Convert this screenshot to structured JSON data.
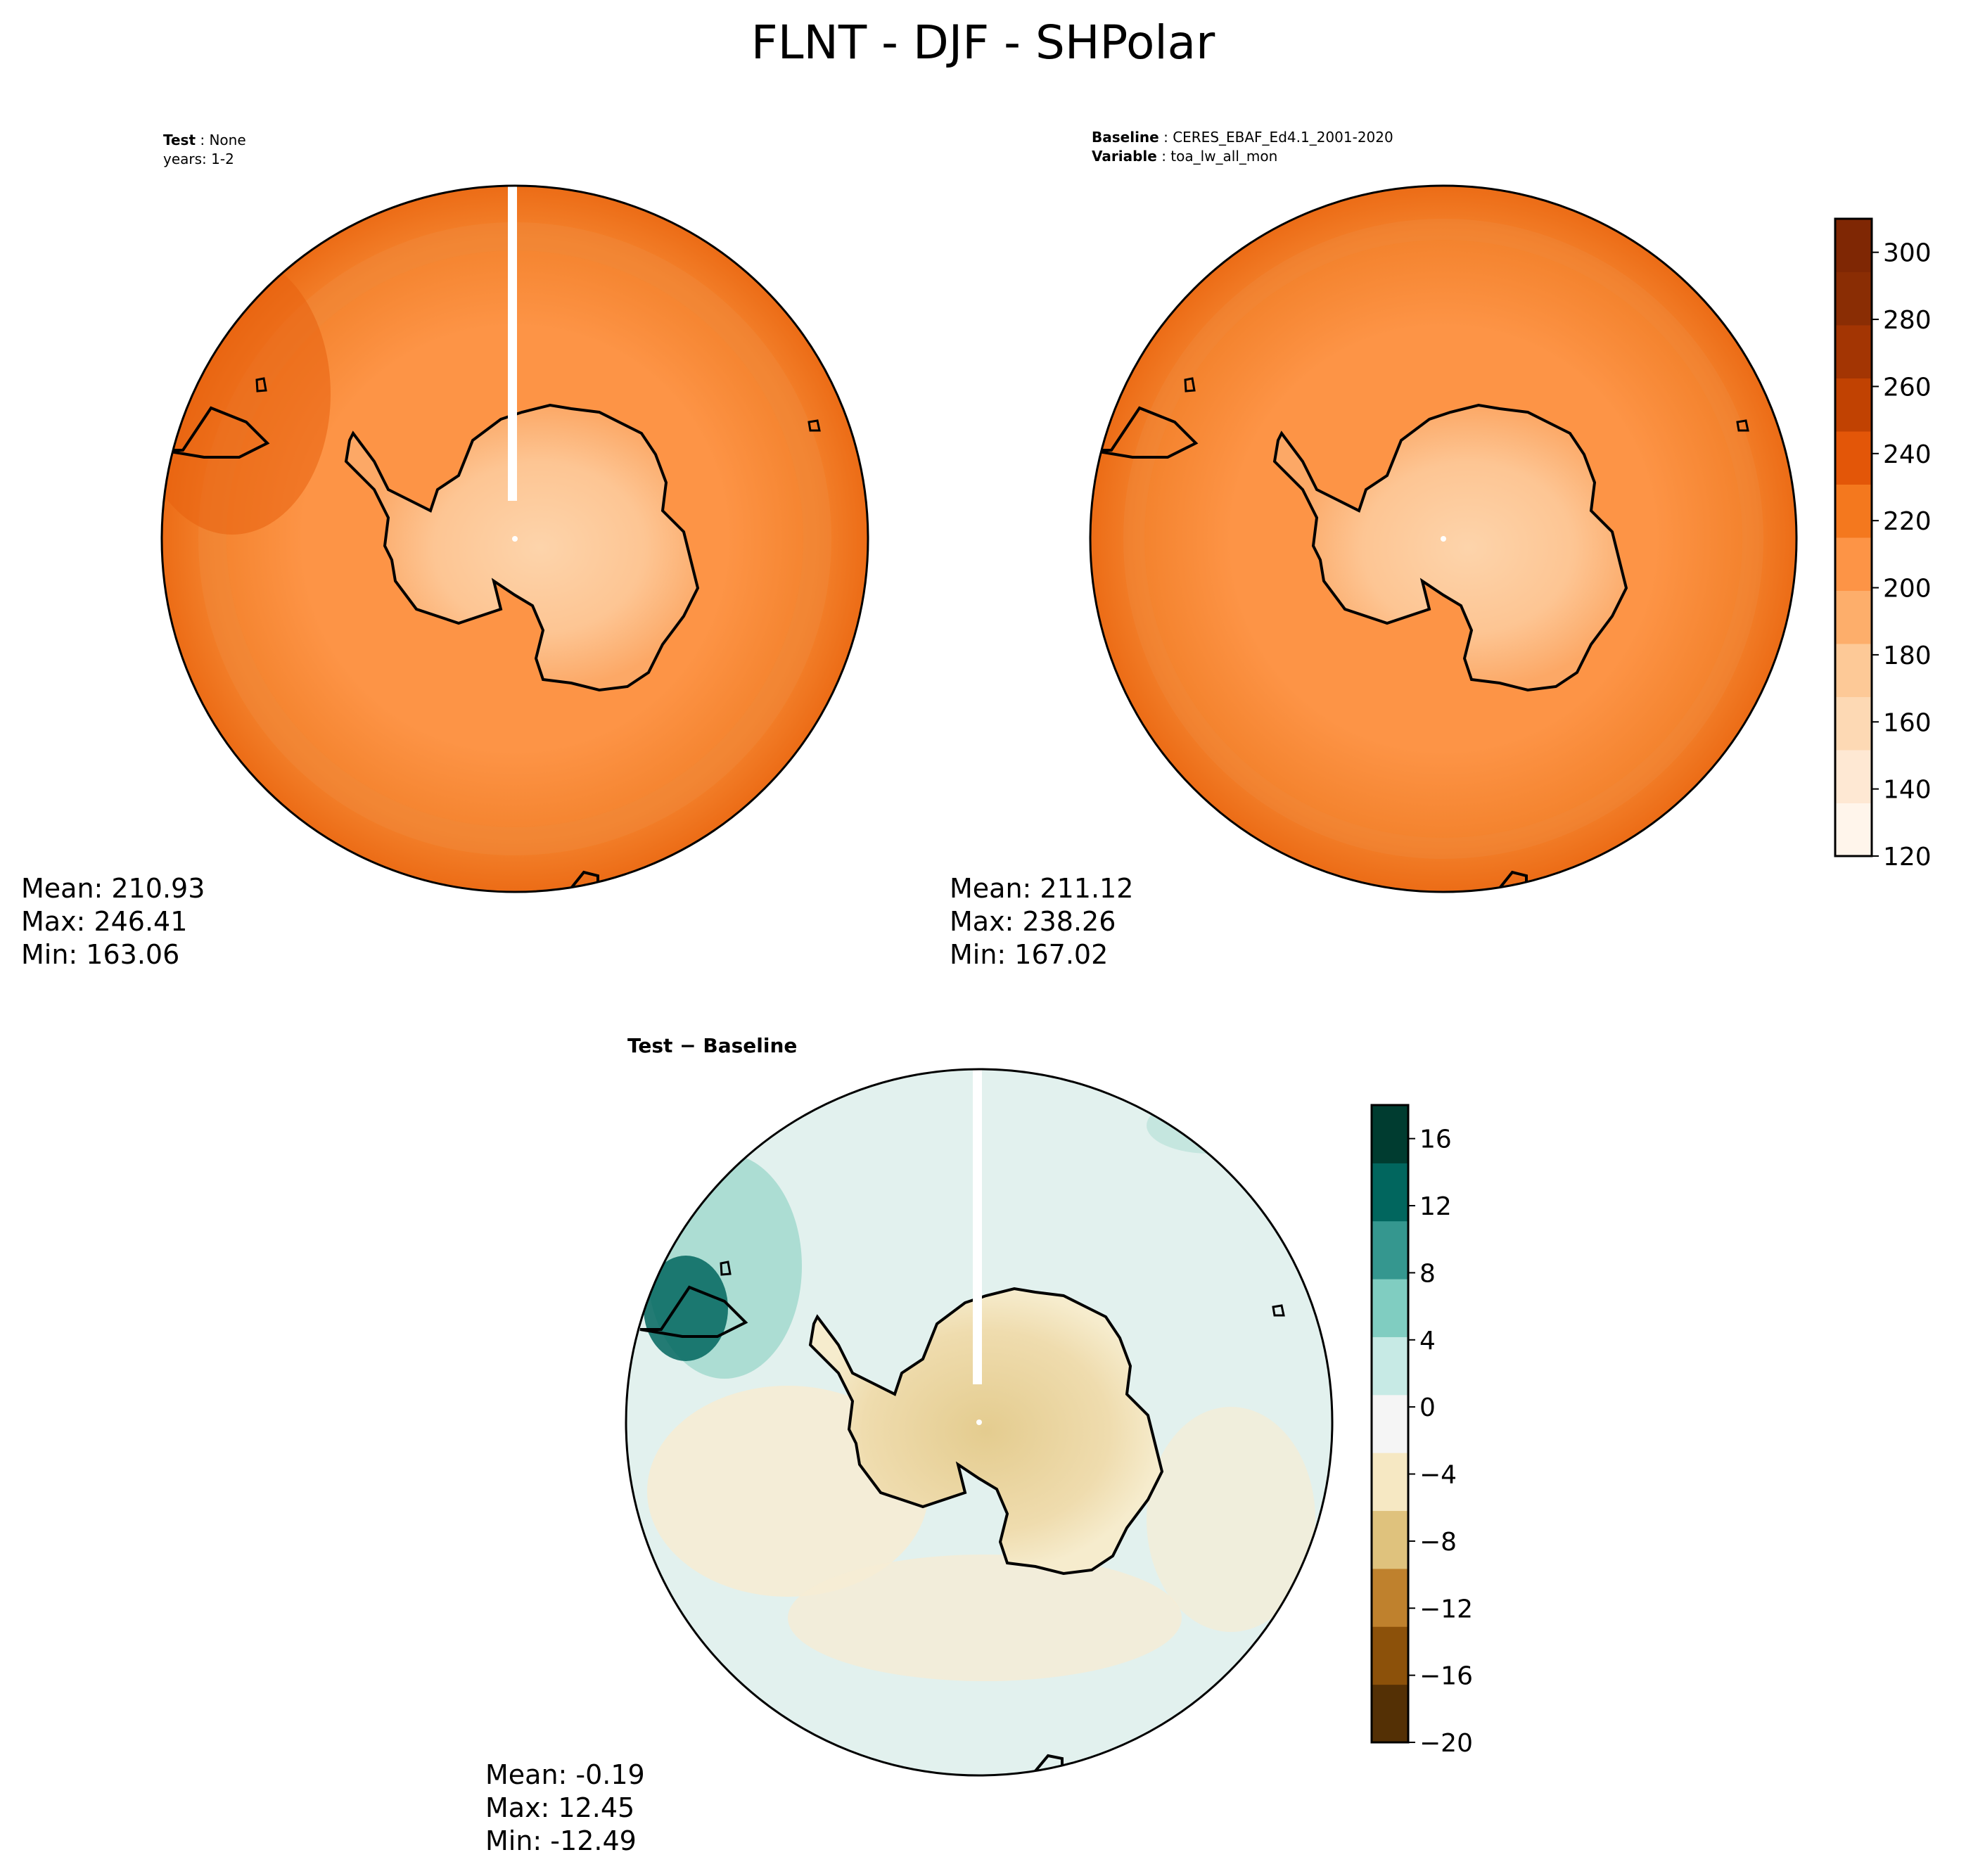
{
  "figure": {
    "title": "FLNT - DJF - SHPolar"
  },
  "test_panel": {
    "label_bold": "Test",
    "label_value": "None",
    "years": "years: 1-2",
    "stats": {
      "mean": "Mean: 210.93",
      "max": "Max: 246.41",
      "min": "Min: 163.06"
    }
  },
  "baseline_panel": {
    "label_bold": "Baseline",
    "label_value": "CERES_EBAF_Ed4.1_2001-2020",
    "variable_bold": "Variable",
    "variable_value": "toa_lw_all_mon",
    "stats": {
      "mean": "Mean: 211.12",
      "max": "Max: 238.26",
      "min": "Min: 167.02"
    }
  },
  "diff_panel": {
    "title": "Test − Baseline",
    "stats": {
      "mean": "Mean: -0.19",
      "max": "Max: 12.45",
      "min": "Min: -12.49"
    }
  },
  "colorbars": {
    "main": {
      "range": [
        120,
        310
      ],
      "ticks": [
        "120",
        "140",
        "160",
        "180",
        "200",
        "220",
        "240",
        "260",
        "280",
        "300"
      ],
      "colormap": "Oranges",
      "colors": [
        "#fff5eb",
        "#fee8d3",
        "#fdd9b4",
        "#fdc997",
        "#fdae6b",
        "#fd9446",
        "#f4781e",
        "#e35608",
        "#c14202",
        "#a33503",
        "#8a2d04",
        "#7f2704"
      ]
    },
    "diff": {
      "range": [
        -20,
        18
      ],
      "ticks": [
        "−20",
        "−16",
        "−12",
        "−8",
        "−4",
        "0",
        "4",
        "8",
        "12",
        "16"
      ],
      "colormap": "BrBG",
      "colors": [
        "#543005",
        "#8c510a",
        "#bf812d",
        "#dfc27d",
        "#f6e8c3",
        "#f5f5f5",
        "#c7eae5",
        "#80cdc1",
        "#35978f",
        "#01665e",
        "#003c30"
      ]
    }
  },
  "colors": {
    "ocean_main": "#f4832e",
    "antarctica_main": "#fdc59a",
    "diff_background": "#e2f1ee"
  }
}
